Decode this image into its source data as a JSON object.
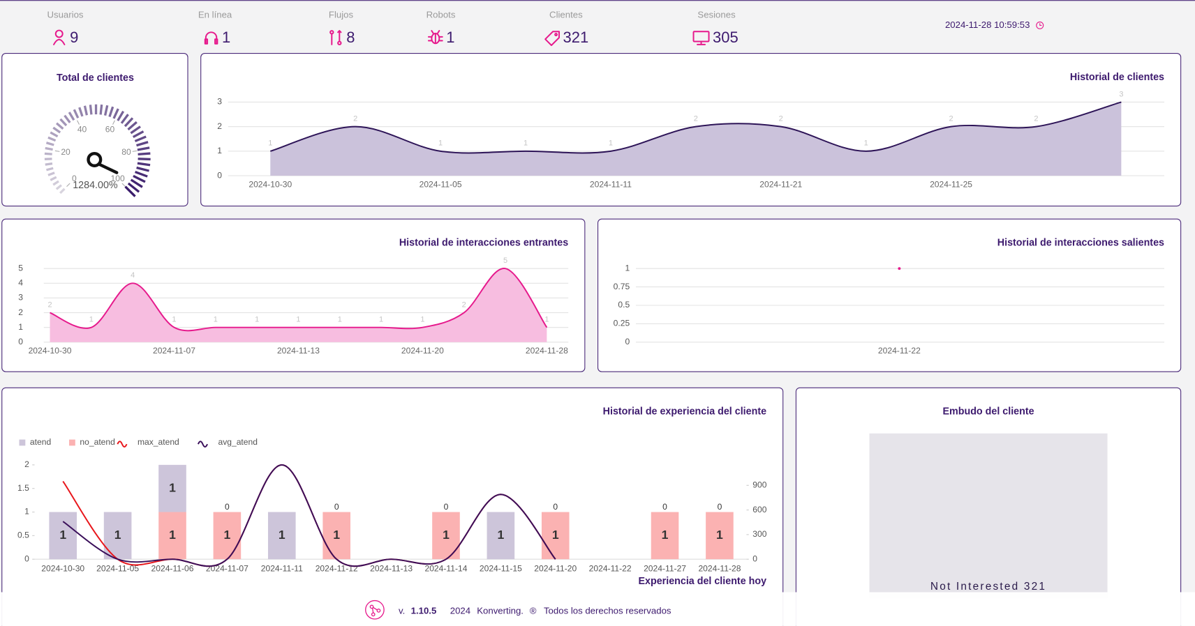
{
  "stats": [
    {
      "label": "Usuarios",
      "value": 9
    },
    {
      "label": "En línea",
      "value": 1
    },
    {
      "label": "Flujos",
      "value": 8
    },
    {
      "label": "Robots",
      "value": 1
    },
    {
      "label": "Clientes",
      "value": 321
    },
    {
      "label": "Sesiones",
      "value": 305
    }
  ],
  "timestamp": "2024-11-28 10:59:53",
  "gauge": {
    "title": "Total de clientes",
    "range": [
      0,
      100
    ],
    "ticks": [
      0,
      20,
      40,
      60,
      80,
      100
    ],
    "value_label": "1284.00%"
  },
  "clients_history": {
    "type": "area",
    "title": "Historial de clientes",
    "categories": [
      "2024-10-30",
      null,
      "2024-11-05",
      null,
      "2024-11-11",
      null,
      "2024-11-21",
      null,
      "2024-11-25",
      null,
      null
    ],
    "values": [
      1,
      2,
      1,
      1,
      1,
      2,
      2,
      1,
      2,
      2,
      3
    ],
    "ylim": [
      0,
      3
    ],
    "yticks": [
      0,
      1,
      2,
      3
    ],
    "grid": true,
    "data_labels": true,
    "color": "#2d1457",
    "fill_color": "#cbc2db"
  },
  "incoming": {
    "type": "area",
    "title": "Historial de interacciones entrantes",
    "categories": [
      "2024-10-30",
      null,
      null,
      "2024-11-07",
      null,
      null,
      "2024-11-13",
      null,
      null,
      "2024-11-20",
      null,
      null,
      "2024-11-28"
    ],
    "values": [
      2,
      1,
      4,
      1,
      1,
      1,
      1,
      1,
      1,
      1,
      2,
      5,
      1
    ],
    "ylim": [
      0,
      5
    ],
    "yticks": [
      0,
      1,
      2,
      3,
      4,
      5
    ],
    "grid": true,
    "data_labels": true,
    "color": "#e6198c",
    "fill_color": "#f7bde0"
  },
  "outgoing": {
    "type": "line",
    "title": "Historial de interacciones salientes",
    "categories": [
      "2024-11-22"
    ],
    "values": [
      1
    ],
    "ylim": [
      0,
      1
    ],
    "yticks": [
      0,
      0.25,
      0.5,
      0.75,
      1
    ],
    "grid": true,
    "data_labels": false,
    "color": "#e6198c"
  },
  "experience": {
    "type": "bar-line",
    "title": "Historial de experiencia del cliente",
    "x_label": "Experiencia del cliente hoy",
    "categories": [
      "2024-10-30",
      "2024-11-05",
      "2024-11-06",
      "2024-11-07",
      "2024-11-11",
      "2024-11-12",
      "2024-11-13",
      "2024-11-14",
      "2024-11-15",
      "2024-11-20",
      "2024-11-22",
      "2024-11-27",
      "2024-11-28"
    ],
    "ylim": [
      0,
      2
    ],
    "yticks": [
      0,
      0.5,
      1,
      1.5,
      2
    ],
    "y2lim": [
      0,
      1150
    ],
    "y2ticks": [
      0,
      300,
      600,
      900
    ],
    "series": [
      {
        "name": "atend",
        "type": "bar",
        "color": "#cdc5da",
        "values": [
          1,
          1,
          1,
          0,
          1,
          0,
          null,
          0,
          1,
          0,
          null,
          0,
          0
        ]
      },
      {
        "name": "no_atend",
        "type": "bar",
        "color": "#fbb2b2",
        "values": [
          0,
          0,
          1,
          1,
          0,
          1,
          null,
          1,
          0,
          1,
          null,
          1,
          1
        ]
      },
      {
        "name": "max_atend",
        "type": "line",
        "axis": "y2",
        "color": "#e8161b",
        "values": [
          950,
          0,
          0,
          0,
          1150,
          0,
          0,
          0,
          790,
          0,
          null,
          null,
          null
        ]
      },
      {
        "name": "avg_atend",
        "type": "line",
        "axis": "y2",
        "color": "#3a0f5a",
        "values": [
          460,
          0,
          0,
          0,
          1150,
          0,
          0,
          0,
          790,
          0,
          null,
          null,
          null
        ]
      }
    ]
  },
  "funnel": {
    "title": "Embudo del cliente",
    "stages": [
      {
        "name": "Not Interested",
        "value": 321
      }
    ]
  },
  "footer": {
    "version_prefix": "v.",
    "version": "1.10.5",
    "year": "2024",
    "company": "Konverting.",
    "registered": "®",
    "rights": "Todos los derechos reservados"
  }
}
